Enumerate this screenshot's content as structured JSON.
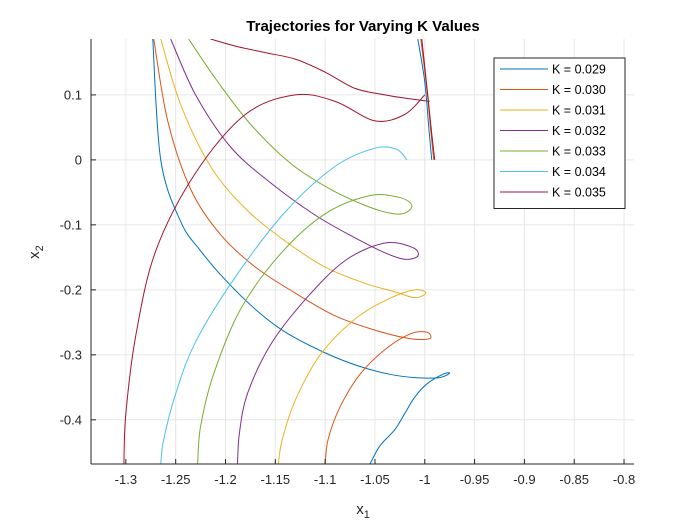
{
  "chart_data": {
    "type": "line",
    "title": "Trajectories for Varying K Values",
    "xlabel": "x",
    "xlabel_sub": "1",
    "ylabel": "x",
    "ylabel_sub": "2",
    "xlim": [
      -1.335,
      -0.79
    ],
    "ylim": [
      -0.468,
      0.186
    ],
    "xticks": [
      -1.3,
      -1.25,
      -1.2,
      -1.15,
      -1.1,
      -1.05,
      -1,
      -0.95,
      -0.9,
      -0.85,
      -0.8
    ],
    "xtick_labels": [
      "-1.3",
      "-1.25",
      "-1.2",
      "-1.15",
      "-1.1",
      "-1.05",
      "-1",
      "-0.95",
      "-0.9",
      "-0.85",
      "-0.8"
    ],
    "yticks": [
      0.1,
      0,
      -0.1,
      -0.2,
      -0.3,
      -0.4
    ],
    "ytick_labels": [
      "0.1",
      "0",
      "-0.1",
      "-0.2",
      "-0.3",
      "-0.4"
    ],
    "grid": true,
    "legend_position": "top-right",
    "series": [
      {
        "name": "K = 0.029",
        "color": "#0072BD",
        "x": [
          -1.273,
          -1.265,
          -1.245,
          -1.225,
          -1.2,
          -1.17,
          -1.14,
          -1.1,
          -1.065,
          -1.035,
          -1.01,
          -0.985,
          -0.975,
          -0.982,
          -0.998,
          -1.01,
          -1.02,
          -1.03,
          -1.045,
          -1.055
        ],
        "y": [
          0.186,
          0.0,
          -0.095,
          -0.14,
          -0.185,
          -0.23,
          -0.265,
          -0.297,
          -0.318,
          -0.33,
          -0.335,
          -0.335,
          -0.328,
          -0.33,
          -0.345,
          -0.365,
          -0.39,
          -0.415,
          -0.44,
          -0.468
        ]
      },
      {
        "name": "K = 0.030",
        "color": "#D95319",
        "x": [
          -1.272,
          -1.258,
          -1.235,
          -1.205,
          -1.17,
          -1.13,
          -1.09,
          -1.05,
          -1.015,
          -0.995,
          -0.998,
          -1.015,
          -1.04,
          -1.065,
          -1.085,
          -1.097,
          -1.1
        ],
        "y": [
          0.186,
          0.06,
          -0.045,
          -0.115,
          -0.165,
          -0.205,
          -0.24,
          -0.262,
          -0.275,
          -0.275,
          -0.265,
          -0.268,
          -0.292,
          -0.33,
          -0.38,
          -0.43,
          -0.468
        ]
      },
      {
        "name": "K = 0.031",
        "color": "#EDB120",
        "x": [
          -1.265,
          -1.245,
          -1.215,
          -1.18,
          -1.14,
          -1.1,
          -1.06,
          -1.03,
          -1.01,
          -0.999,
          -1.01,
          -1.035,
          -1.07,
          -1.105,
          -1.13,
          -1.143,
          -1.147
        ],
        "y": [
          0.186,
          0.085,
          -0.01,
          -0.075,
          -0.125,
          -0.165,
          -0.19,
          -0.203,
          -0.212,
          -0.205,
          -0.2,
          -0.213,
          -0.245,
          -0.3,
          -0.37,
          -0.43,
          -0.468
        ]
      },
      {
        "name": "K = 0.032",
        "color": "#7E2F8E",
        "x": [
          -1.255,
          -1.23,
          -1.195,
          -1.155,
          -1.11,
          -1.07,
          -1.04,
          -1.02,
          -1.007,
          -1.012,
          -1.04,
          -1.08,
          -1.12,
          -1.155,
          -1.178,
          -1.186,
          -1.188
        ],
        "y": [
          0.186,
          0.1,
          0.02,
          -0.035,
          -0.085,
          -0.12,
          -0.143,
          -0.153,
          -0.148,
          -0.135,
          -0.128,
          -0.155,
          -0.215,
          -0.285,
          -0.36,
          -0.42,
          -0.468
        ]
      },
      {
        "name": "K = 0.033",
        "color": "#77AC30",
        "x": [
          -1.237,
          -1.21,
          -1.175,
          -1.135,
          -1.095,
          -1.06,
          -1.035,
          -1.02,
          -1.013,
          -1.025,
          -1.055,
          -1.1,
          -1.145,
          -1.185,
          -1.212,
          -1.225,
          -1.228
        ],
        "y": [
          0.186,
          0.125,
          0.055,
          -0.005,
          -0.045,
          -0.07,
          -0.082,
          -0.082,
          -0.07,
          -0.058,
          -0.055,
          -0.083,
          -0.145,
          -0.23,
          -0.33,
          -0.41,
          -0.468
        ]
      },
      {
        "name": "K = 0.034",
        "color": "#4DBEEE",
        "x": [
          -1.018,
          -1.028,
          -1.05,
          -1.09,
          -1.14,
          -1.19,
          -1.23,
          -1.25,
          -1.262,
          -1.265
        ],
        "y": [
          0.0,
          0.016,
          0.018,
          -0.01,
          -0.08,
          -0.18,
          -0.28,
          -0.36,
          -0.43,
          -0.468
        ]
      },
      {
        "name": "K = 0.035",
        "color": "#A2142F",
        "x": [
          -1.0,
          -1.02,
          -1.05,
          -1.09,
          -1.13,
          -1.18,
          -1.23,
          -1.27,
          -1.29,
          -1.3,
          -1.302
        ],
        "y": [
          0.1,
          0.07,
          0.06,
          0.09,
          0.1,
          0.07,
          -0.02,
          -0.14,
          -0.27,
          -0.39,
          -0.468
        ]
      }
    ],
    "extra_curves": [
      {
        "color": "#A2142F",
        "x": [
          -1.215,
          -1.19,
          -1.16,
          -1.13,
          -1.1,
          -1.07,
          -1.04,
          -1.02,
          -1.005,
          -0.995
        ],
        "y": [
          0.186,
          0.175,
          0.165,
          0.155,
          0.135,
          0.11,
          0.1,
          0.095,
          0.092,
          0.09
        ]
      },
      {
        "color": "#0072BD",
        "x": [
          -1.007,
          -1.0,
          -0.996,
          -0.993
        ],
        "y": [
          0.186,
          0.12,
          0.05,
          0.0
        ]
      },
      {
        "color": "#D95319",
        "x": [
          -1.004,
          -0.998,
          -0.994,
          -0.991
        ],
        "y": [
          0.186,
          0.11,
          0.045,
          0.0
        ]
      },
      {
        "color": "#A2142F",
        "x": [
          -1.003,
          -0.997,
          -0.993,
          -0.99
        ],
        "y": [
          0.186,
          0.1,
          0.04,
          0.0
        ]
      }
    ]
  }
}
